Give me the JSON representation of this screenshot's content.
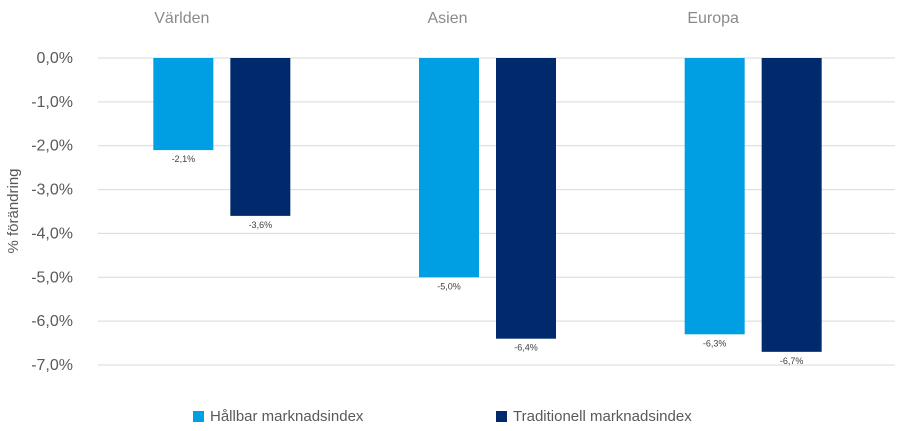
{
  "chart_data": {
    "type": "bar",
    "categories": [
      "Världen",
      "Asien",
      "Europa"
    ],
    "series": [
      {
        "name": "Hållbar marknadsindex",
        "color": "#009fe3",
        "values": [
          -2.1,
          -5.0,
          -6.3
        ],
        "labels": [
          "-2,1%",
          "-5,0%",
          "-6,3%"
        ]
      },
      {
        "name": "Traditionell marknadsindex",
        "color": "#002a6c",
        "values": [
          -3.6,
          -6.4,
          -6.7
        ],
        "labels": [
          "-3,6%",
          "-6,4%",
          "-6,7%"
        ]
      }
    ],
    "ylabel": "% förändring",
    "ylim": [
      -7,
      0
    ],
    "yticks": [
      0,
      -1,
      -2,
      -3,
      -4,
      -5,
      -6,
      -7
    ],
    "ytick_labels": [
      "0,0%",
      "-1,0%",
      "-2,0%",
      "-3,0%",
      "-4,0%",
      "-5,0%",
      "-6,0%",
      "-7,0%"
    ],
    "grid": true,
    "legend": "bottom"
  }
}
